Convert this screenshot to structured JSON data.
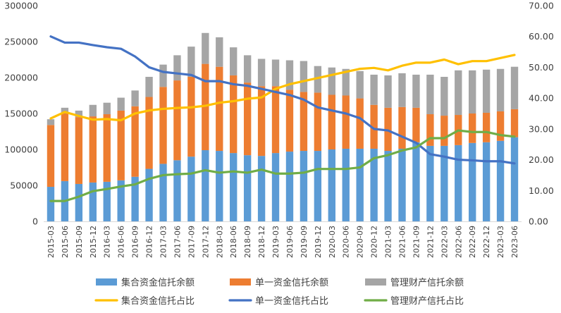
{
  "chart_data": {
    "type": "bar+line",
    "categories": [
      "2015-03",
      "2015-06",
      "2015-09",
      "2015-12",
      "2016-03",
      "2016-06",
      "2016-09",
      "2016-12",
      "2017-03",
      "2017-06",
      "2017-09",
      "2017-12",
      "2018-03",
      "2018-06",
      "2018-09",
      "2018-12",
      "2019-03",
      "2019-06",
      "2019-09",
      "2019-12",
      "2020-03",
      "2020-06",
      "2020-09",
      "2020-12",
      "2021-03",
      "2021-06",
      "2021-09",
      "2021-12",
      "2022-03",
      "2022-06",
      "2022-09",
      "2022-12",
      "2023-03",
      "2023-06"
    ],
    "y_left": {
      "min": 0,
      "max": 300000,
      "step": 50000,
      "ticks": [
        "0",
        "50000",
        "100000",
        "150000",
        "200000",
        "250000",
        "300000"
      ]
    },
    "y_right": {
      "min": 0,
      "max": 70,
      "step": 10,
      "ticks": [
        "0.00",
        "10.00",
        "20.00",
        "30.00",
        "40.00",
        "50.00",
        "60.00",
        "70.00"
      ]
    },
    "bar_series": [
      {
        "name": "集合资金信托余额",
        "color": "#5B9BD5",
        "values": [
          48000,
          56000,
          52000,
          54000,
          55000,
          57000,
          62000,
          73000,
          80000,
          85000,
          90000,
          99000,
          98000,
          95000,
          92000,
          91000,
          95000,
          97000,
          98000,
          98000,
          100000,
          101000,
          101000,
          101000,
          98000,
          101000,
          110000,
          105000,
          105000,
          106000,
          109000,
          110000,
          112000,
          117000
        ]
      },
      {
        "name": "单一资金信托余额",
        "color": "#ED7D31",
        "values": [
          86000,
          94000,
          93000,
          92000,
          94000,
          97000,
          98000,
          100000,
          107000,
          111000,
          111000,
          120000,
          117000,
          108000,
          101000,
          97000,
          93000,
          86000,
          82000,
          81000,
          76000,
          74000,
          70000,
          61000,
          60000,
          58000,
          48000,
          44000,
          42000,
          42000,
          41000,
          41000,
          41000,
          39000
        ]
      },
      {
        "name": "管理财产信托余额",
        "color": "#A5A5A5",
        "values": [
          8000,
          8000,
          9000,
          16000,
          16000,
          18000,
          22000,
          28000,
          31000,
          35000,
          42000,
          43000,
          41000,
          39000,
          38000,
          38000,
          37000,
          41000,
          43000,
          37000,
          38000,
          37000,
          38000,
          42000,
          45000,
          47000,
          46000,
          55000,
          54000,
          62000,
          60000,
          60000,
          59000,
          59000
        ]
      }
    ],
    "line_series": [
      {
        "name": "集合资金信托占比",
        "color": "#FFC000",
        "values": [
          33.4,
          35.5,
          34.2,
          33.0,
          33.2,
          32.8,
          35.0,
          36.0,
          36.5,
          36.8,
          37.0,
          37.5,
          38.5,
          39.0,
          39.8,
          40.2,
          43.0,
          44.5,
          45.5,
          46.5,
          47.5,
          48.5,
          49.5,
          49.8,
          49.0,
          50.5,
          51.5,
          51.5,
          52.5,
          51.0,
          52.0,
          52.0,
          53.0,
          54.0
        ]
      },
      {
        "name": "单一资金信托占比",
        "color": "#4472C4",
        "values": [
          60.0,
          58.0,
          58.0,
          57.2,
          56.5,
          56.0,
          53.5,
          50.0,
          48.5,
          48.0,
          47.5,
          45.5,
          45.5,
          44.5,
          44.0,
          43.0,
          42.0,
          41.0,
          39.5,
          37.0,
          36.0,
          35.0,
          33.5,
          30.0,
          29.5,
          27.5,
          25.5,
          21.8,
          21.0,
          20.0,
          19.8,
          19.5,
          19.5,
          18.8
        ]
      },
      {
        "name": "管理财产信托占比",
        "color": "#70AD47",
        "values": [
          6.6,
          6.6,
          8.0,
          9.8,
          10.5,
          11.3,
          12.0,
          13.8,
          15.0,
          15.3,
          15.5,
          16.6,
          15.8,
          16.2,
          15.8,
          16.8,
          15.5,
          15.5,
          15.8,
          17.0,
          17.0,
          17.0,
          17.5,
          20.5,
          21.5,
          23.0,
          24.0,
          27.0,
          27.0,
          29.5,
          29.0,
          29.0,
          28.0,
          27.5
        ]
      }
    ],
    "legend": {
      "placement": "bottom"
    },
    "gridlines": false
  }
}
